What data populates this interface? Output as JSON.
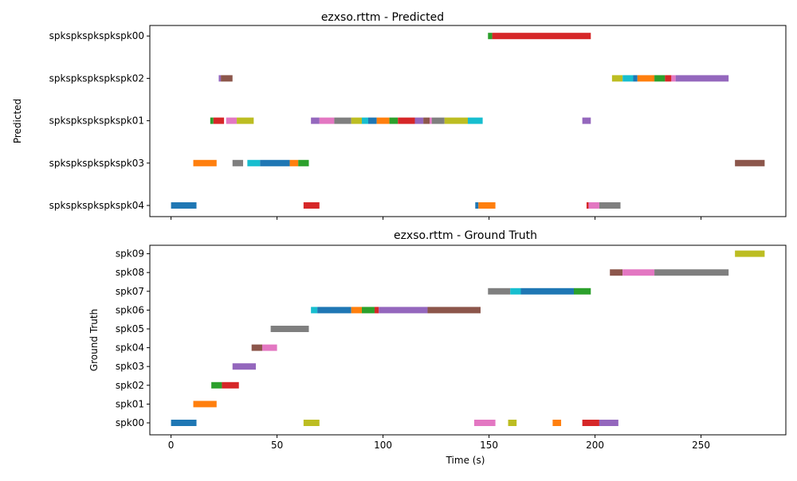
{
  "palette": {
    "blue": "#1f77b4",
    "orange": "#ff7f0e",
    "green": "#2ca02c",
    "red": "#d62728",
    "purple": "#9467bd",
    "brown": "#8c564b",
    "pink": "#e377c2",
    "gray": "#7f7f7f",
    "olive": "#bcbd22",
    "cyan": "#17becf"
  },
  "chart_data": [
    {
      "type": "timeline",
      "title": "ezxso.rttm - Predicted",
      "ylabel": "Predicted",
      "xlabel": "",
      "xlim": [
        -10,
        290
      ],
      "xticks": [
        0,
        50,
        100,
        150,
        200,
        250
      ],
      "rows": [
        "spkspkspkspkspk04",
        "spkspkspkspkspk03",
        "spkspkspkspkspk01",
        "spkspkspkspkspk02",
        "spkspkspkspkspk00"
      ],
      "segments": [
        {
          "row": "spkspkspkspkspk00",
          "start": 149.5,
          "end": 151.5,
          "color": "green"
        },
        {
          "row": "spkspkspkspkspk00",
          "start": 151.5,
          "end": 198,
          "color": "red"
        },
        {
          "row": "spkspkspkspkspk02",
          "start": 22.5,
          "end": 23.5,
          "color": "purple"
        },
        {
          "row": "spkspkspkspkspk02",
          "start": 23.5,
          "end": 29,
          "color": "brown"
        },
        {
          "row": "spkspkspkspkspk02",
          "start": 208,
          "end": 213,
          "color": "olive"
        },
        {
          "row": "spkspkspkspkspk02",
          "start": 213,
          "end": 218,
          "color": "cyan"
        },
        {
          "row": "spkspkspkspkspk02",
          "start": 218,
          "end": 220,
          "color": "blue"
        },
        {
          "row": "spkspkspkspkspk02",
          "start": 220,
          "end": 228,
          "color": "orange"
        },
        {
          "row": "spkspkspkspkspk02",
          "start": 228,
          "end": 233,
          "color": "green"
        },
        {
          "row": "spkspkspkspkspk02",
          "start": 233,
          "end": 236,
          "color": "red"
        },
        {
          "row": "spkspkspkspkspk02",
          "start": 236,
          "end": 238,
          "color": "pink"
        },
        {
          "row": "spkspkspkspkspk02",
          "start": 238,
          "end": 263,
          "color": "purple"
        },
        {
          "row": "spkspkspkspkspk01",
          "start": 18.5,
          "end": 20,
          "color": "green"
        },
        {
          "row": "spkspkspkspkspk01",
          "start": 20,
          "end": 25,
          "color": "red"
        },
        {
          "row": "spkspkspkspkspk01",
          "start": 26,
          "end": 31,
          "color": "pink"
        },
        {
          "row": "spkspkspkspkspk01",
          "start": 31,
          "end": 39,
          "color": "olive"
        },
        {
          "row": "spkspkspkspkspk01",
          "start": 66,
          "end": 70,
          "color": "purple"
        },
        {
          "row": "spkspkspkspkspk01",
          "start": 70,
          "end": 77,
          "color": "pink"
        },
        {
          "row": "spkspkspkspkspk01",
          "start": 77,
          "end": 85,
          "color": "gray"
        },
        {
          "row": "spkspkspkspkspk01",
          "start": 85,
          "end": 90,
          "color": "olive"
        },
        {
          "row": "spkspkspkspkspk01",
          "start": 90,
          "end": 93,
          "color": "cyan"
        },
        {
          "row": "spkspkspkspkspk01",
          "start": 93,
          "end": 97,
          "color": "blue"
        },
        {
          "row": "spkspkspkspkspk01",
          "start": 97,
          "end": 103,
          "color": "orange"
        },
        {
          "row": "spkspkspkspkspk01",
          "start": 103,
          "end": 107,
          "color": "green"
        },
        {
          "row": "spkspkspkspkspk01",
          "start": 107,
          "end": 115,
          "color": "red"
        },
        {
          "row": "spkspkspkspkspk01",
          "start": 115,
          "end": 119,
          "color": "purple"
        },
        {
          "row": "spkspkspkspkspk01",
          "start": 119,
          "end": 122,
          "color": "brown"
        },
        {
          "row": "spkspkspkspkspk01",
          "start": 122,
          "end": 123,
          "color": "pink"
        },
        {
          "row": "spkspkspkspkspk01",
          "start": 123,
          "end": 129,
          "color": "gray"
        },
        {
          "row": "spkspkspkspkspk01",
          "start": 129,
          "end": 140,
          "color": "olive"
        },
        {
          "row": "spkspkspkspkspk01",
          "start": 140,
          "end": 147,
          "color": "cyan"
        },
        {
          "row": "spkspkspkspkspk01",
          "start": 194,
          "end": 198,
          "color": "purple"
        },
        {
          "row": "spkspkspkspkspk03",
          "start": 10.5,
          "end": 21.5,
          "color": "orange"
        },
        {
          "row": "spkspkspkspkspk03",
          "start": 29,
          "end": 34,
          "color": "gray"
        },
        {
          "row": "spkspkspkspkspk03",
          "start": 36,
          "end": 42,
          "color": "cyan"
        },
        {
          "row": "spkspkspkspkspk03",
          "start": 42,
          "end": 56,
          "color": "blue"
        },
        {
          "row": "spkspkspkspkspk03",
          "start": 56,
          "end": 60,
          "color": "orange"
        },
        {
          "row": "spkspkspkspkspk03",
          "start": 60,
          "end": 65,
          "color": "green"
        },
        {
          "row": "spkspkspkspkspk03",
          "start": 266,
          "end": 280,
          "color": "brown"
        },
        {
          "row": "spkspkspkspkspk04",
          "start": 0,
          "end": 12,
          "color": "blue"
        },
        {
          "row": "spkspkspkspkspk04",
          "start": 62.5,
          "end": 70,
          "color": "red"
        },
        {
          "row": "spkspkspkspkspk04",
          "start": 143.5,
          "end": 145,
          "color": "blue"
        },
        {
          "row": "spkspkspkspkspk04",
          "start": 145,
          "end": 153,
          "color": "orange"
        },
        {
          "row": "spkspkspkspkspk04",
          "start": 196,
          "end": 197,
          "color": "red"
        },
        {
          "row": "spkspkspkspkspk04",
          "start": 197,
          "end": 202,
          "color": "pink"
        },
        {
          "row": "spkspkspkspkspk04",
          "start": 202,
          "end": 212,
          "color": "gray"
        }
      ]
    },
    {
      "type": "timeline",
      "title": "ezxso.rttm - Ground Truth",
      "ylabel": "Ground Truth",
      "xlabel": "Time (s)",
      "xlim": [
        -10,
        290
      ],
      "xticks": [
        0,
        50,
        100,
        150,
        200,
        250
      ],
      "rows": [
        "spk00",
        "spk01",
        "spk02",
        "spk03",
        "spk04",
        "spk05",
        "spk06",
        "spk07",
        "spk08",
        "spk09"
      ],
      "segments": [
        {
          "row": "spk09",
          "start": 266,
          "end": 280,
          "color": "olive"
        },
        {
          "row": "spk08",
          "start": 207,
          "end": 213,
          "color": "brown"
        },
        {
          "row": "spk08",
          "start": 213,
          "end": 228,
          "color": "pink"
        },
        {
          "row": "spk08",
          "start": 228,
          "end": 263,
          "color": "gray"
        },
        {
          "row": "spk07",
          "start": 149.5,
          "end": 160,
          "color": "gray"
        },
        {
          "row": "spk07",
          "start": 160,
          "end": 165,
          "color": "cyan"
        },
        {
          "row": "spk07",
          "start": 165,
          "end": 190,
          "color": "blue"
        },
        {
          "row": "spk07",
          "start": 190,
          "end": 198,
          "color": "green"
        },
        {
          "row": "spk06",
          "start": 66,
          "end": 69,
          "color": "cyan"
        },
        {
          "row": "spk06",
          "start": 69,
          "end": 85,
          "color": "blue"
        },
        {
          "row": "spk06",
          "start": 85,
          "end": 90,
          "color": "orange"
        },
        {
          "row": "spk06",
          "start": 90,
          "end": 96,
          "color": "green"
        },
        {
          "row": "spk06",
          "start": 96,
          "end": 98,
          "color": "red"
        },
        {
          "row": "spk06",
          "start": 98,
          "end": 121,
          "color": "purple"
        },
        {
          "row": "spk06",
          "start": 121,
          "end": 146,
          "color": "brown"
        },
        {
          "row": "spk05",
          "start": 47,
          "end": 65,
          "color": "gray"
        },
        {
          "row": "spk04",
          "start": 38,
          "end": 43,
          "color": "brown"
        },
        {
          "row": "spk04",
          "start": 43,
          "end": 50,
          "color": "pink"
        },
        {
          "row": "spk03",
          "start": 29,
          "end": 40,
          "color": "purple"
        },
        {
          "row": "spk02",
          "start": 19,
          "end": 24,
          "color": "green"
        },
        {
          "row": "spk02",
          "start": 24,
          "end": 32,
          "color": "red"
        },
        {
          "row": "spk01",
          "start": 10.5,
          "end": 21.5,
          "color": "orange"
        },
        {
          "row": "spk00",
          "start": 0,
          "end": 12,
          "color": "blue"
        },
        {
          "row": "spk00",
          "start": 62.5,
          "end": 70,
          "color": "olive"
        },
        {
          "row": "spk00",
          "start": 143,
          "end": 153,
          "color": "pink"
        },
        {
          "row": "spk00",
          "start": 159,
          "end": 163,
          "color": "olive"
        },
        {
          "row": "spk00",
          "start": 180,
          "end": 184,
          "color": "orange"
        },
        {
          "row": "spk00",
          "start": 194,
          "end": 202,
          "color": "red"
        },
        {
          "row": "spk00",
          "start": 202,
          "end": 211,
          "color": "purple"
        }
      ]
    }
  ]
}
